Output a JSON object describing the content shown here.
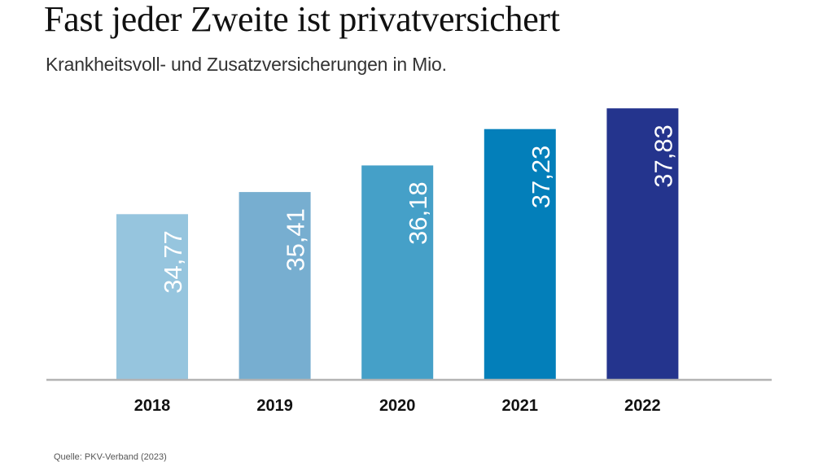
{
  "header": {
    "title": "Fast jeder Zweite ist privatversichert",
    "subtitle": "Krankheitsvoll- und Zusatzversicherungen in Mio."
  },
  "footer": {
    "source": "Quelle: PKV-Verband (2023)"
  },
  "chart_data": {
    "type": "bar",
    "title": "Fast jeder Zweite ist privatversichert",
    "subtitle": "Krankheitsvoll- und Zusatzversicherungen in Mio.",
    "xlabel": "",
    "ylabel": "",
    "categories": [
      "2018",
      "2019",
      "2020",
      "2021",
      "2022"
    ],
    "values": [
      34.77,
      35.41,
      36.18,
      37.23,
      37.83
    ],
    "value_labels": [
      "34,77",
      "35,41",
      "36,18",
      "37,23",
      "37,83"
    ],
    "colors": [
      "#96c5de",
      "#77aed0",
      "#45a0c8",
      "#037fba",
      "#24348d"
    ],
    "ylim": [
      30,
      38.6
    ],
    "grid": false,
    "legend": "none",
    "axis_line_color": "#b3b3b3",
    "label_color": "#ffffff"
  }
}
